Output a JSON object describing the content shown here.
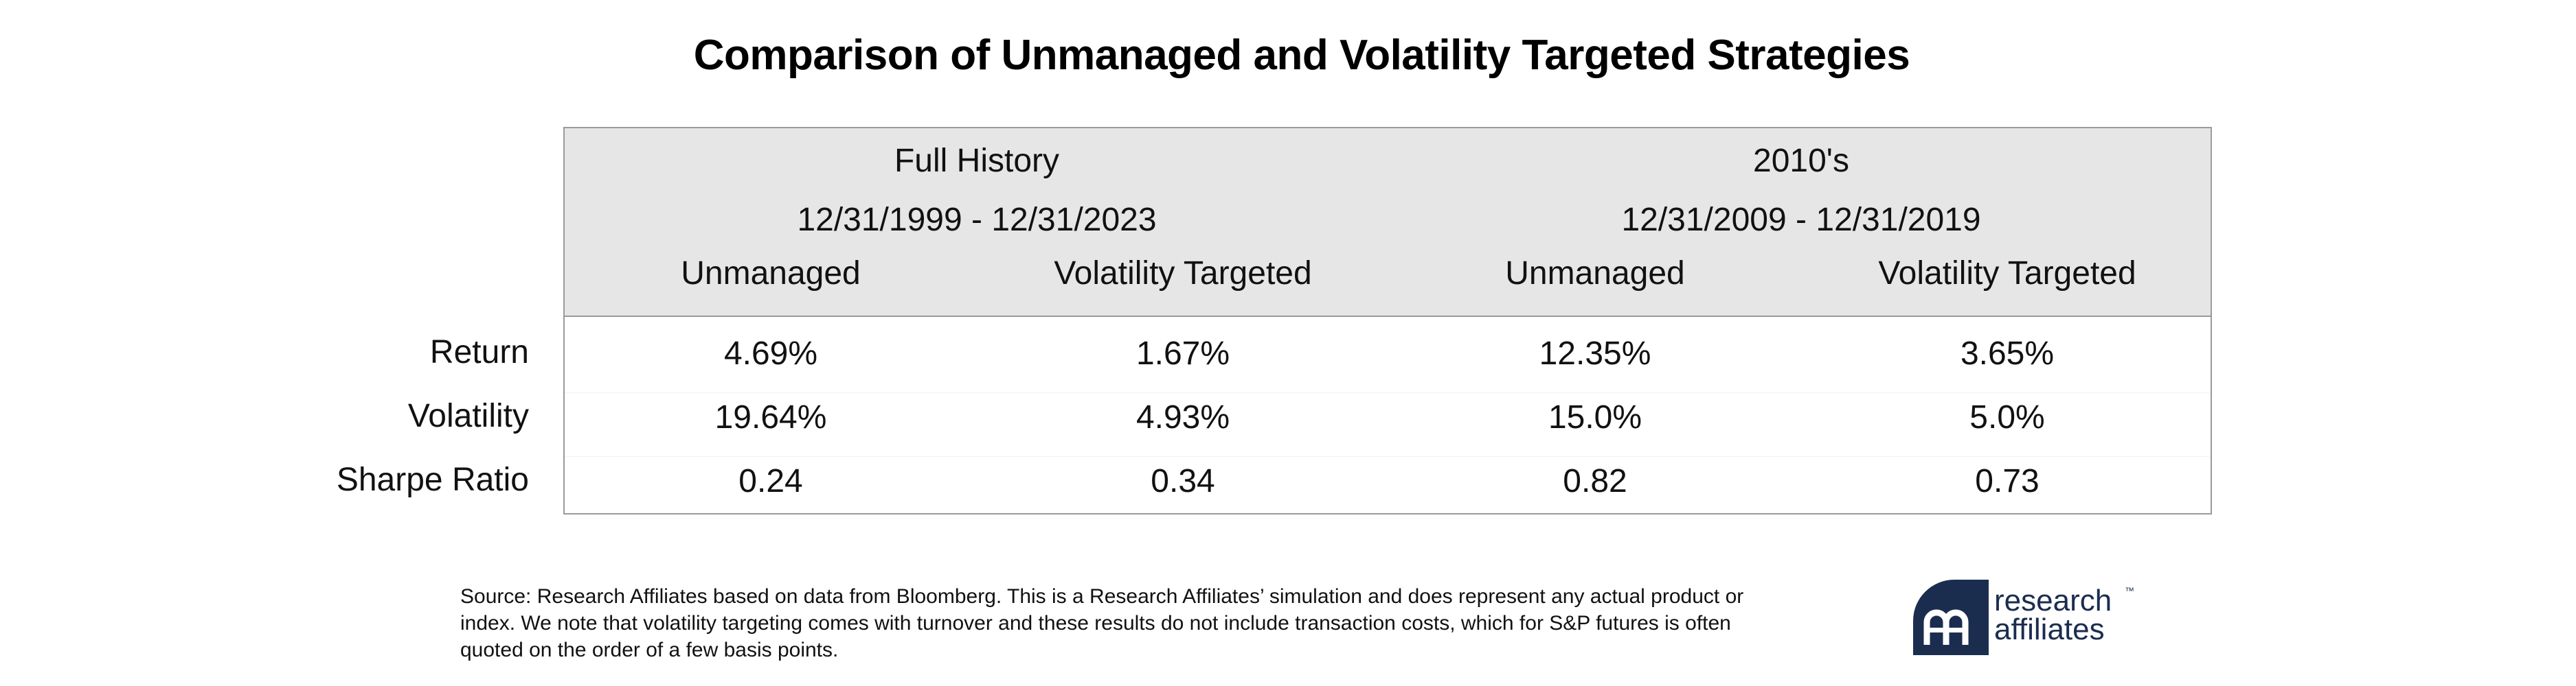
{
  "chart_data": {
    "type": "table",
    "title": "Comparison of Unmanaged and Volatility Targeted Strategies",
    "groups": [
      {
        "name": "Full History",
        "period": "12/31/1999 - 12/31/2023",
        "columns": [
          "Unmanaged",
          "Volatility Targeted"
        ]
      },
      {
        "name": "2010's",
        "period": "12/31/2009 - 12/31/2019",
        "columns": [
          "Unmanaged",
          "Volatility Targeted"
        ]
      }
    ],
    "row_labels": [
      "Return",
      "Volatility",
      "Sharpe Ratio"
    ],
    "rows": [
      [
        "4.69%",
        "1.67%",
        "12.35%",
        "3.65%"
      ],
      [
        "19.64%",
        "4.93%",
        "15.0%",
        "5.0%"
      ],
      [
        "0.24",
        "0.34",
        "0.82",
        "0.73"
      ]
    ]
  },
  "source_note": "Source: Research Affiliates based on data from Bloomberg. This is a Research Affiliates’ simulation and does represent any actual product or index. We note that volatility targeting comes with turnover and these results do not include transaction costs, which for S&P futures is often quoted on the order of a few basis points.",
  "logo": {
    "line1": "research",
    "line2": "affiliates",
    "trademark": "™",
    "color": "#1b2d4f"
  },
  "colors": {
    "header_background": "#e6e6e6",
    "border": "#9a9a9a"
  }
}
